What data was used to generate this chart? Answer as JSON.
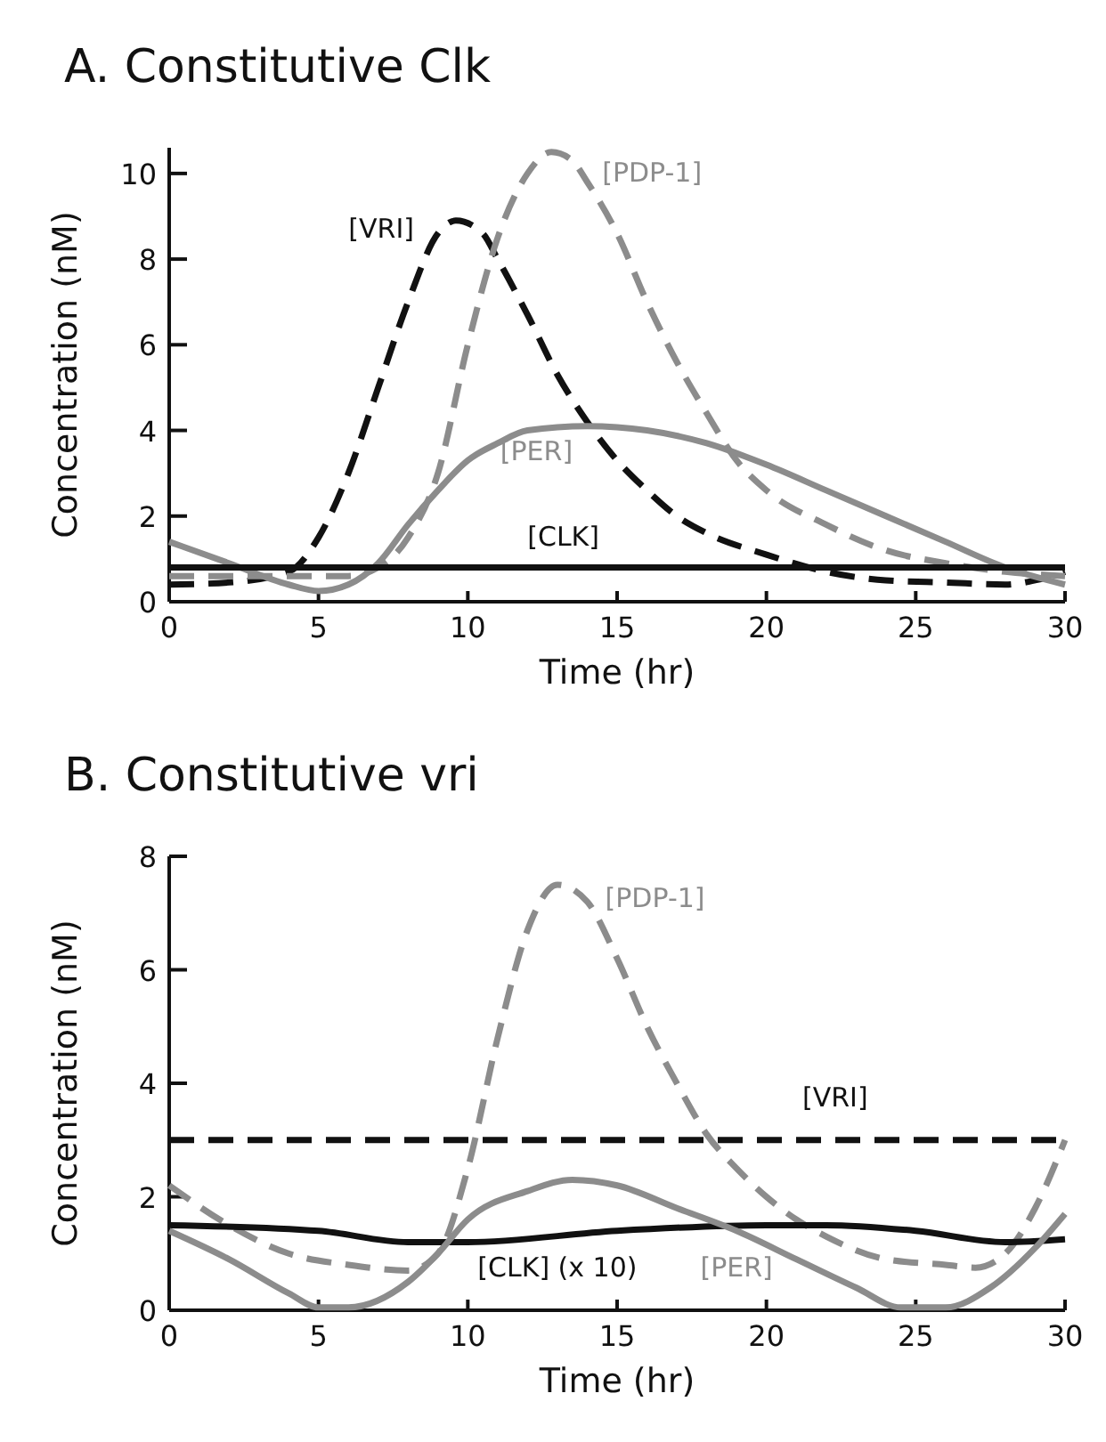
{
  "chart_data": [
    {
      "type": "line",
      "title": "A.  Constitutive Clk",
      "xlabel": "Time (hr)",
      "ylabel": "Concentration (nM)",
      "xlim": [
        0,
        30
      ],
      "xticks": [
        0,
        5,
        10,
        15,
        20,
        25,
        30
      ],
      "ylim": [
        0,
        10.6
      ],
      "yticks": [
        0,
        2,
        4,
        6,
        8,
        10
      ],
      "grid": false,
      "legend": false,
      "marker": "none",
      "series": [
        {
          "name": "[VRI]",
          "color": "#111111",
          "line_style": "dashed",
          "x": [
            0,
            2,
            4,
            5,
            6,
            7,
            8,
            9,
            9.6,
            10.5,
            11,
            12,
            13,
            14,
            15,
            16,
            17,
            18,
            20,
            22,
            24,
            26,
            28,
            29,
            30
          ],
          "values": [
            0.4,
            0.45,
            0.7,
            1.5,
            3,
            5,
            7,
            8.6,
            8.9,
            8.6,
            8,
            6.7,
            5.3,
            4.2,
            3.3,
            2.6,
            2,
            1.6,
            1.1,
            0.7,
            0.5,
            0.45,
            0.4,
            0.5,
            0.7
          ]
        },
        {
          "name": "[PDP-1]",
          "color": "#8c8c8c",
          "line_style": "dashed",
          "x": [
            0,
            4,
            6,
            7,
            8,
            9,
            10,
            11,
            12,
            12.8,
            13.5,
            14,
            15,
            16,
            17,
            18,
            19,
            20,
            22,
            24,
            26,
            28,
            30
          ],
          "values": [
            0.6,
            0.6,
            0.6,
            0.8,
            1.5,
            3,
            6,
            8.5,
            10,
            10.5,
            10.3,
            9.8,
            8.6,
            7,
            5.6,
            4.4,
            3.3,
            2.6,
            1.8,
            1.2,
            0.9,
            0.7,
            0.6
          ]
        },
        {
          "name": "[PER]",
          "color": "#8c8c8c",
          "line_style": "solid",
          "x": [
            0,
            2,
            4,
            5,
            6,
            7,
            8,
            9,
            10,
            11,
            12,
            14,
            16,
            18,
            20,
            22,
            24,
            26,
            28,
            30
          ],
          "values": [
            1.4,
            0.9,
            0.4,
            0.25,
            0.4,
            0.9,
            1.8,
            2.6,
            3.3,
            3.7,
            4,
            4.1,
            4,
            3.7,
            3.2,
            2.6,
            2,
            1.4,
            0.8,
            0.4
          ]
        },
        {
          "name": "[CLK]",
          "color": "#111111",
          "line_style": "solid",
          "x": [
            0,
            30
          ],
          "values": [
            0.8,
            0.8
          ]
        }
      ]
    },
    {
      "type": "line",
      "title": "B.  Constitutive vri",
      "xlabel": "Time (hr)",
      "ylabel": "Concentration (nM)",
      "xlim": [
        0,
        30
      ],
      "xticks": [
        0,
        5,
        10,
        15,
        20,
        25,
        30
      ],
      "ylim": [
        0,
        8
      ],
      "yticks": [
        0,
        2,
        4,
        6,
        8
      ],
      "grid": false,
      "legend": false,
      "marker": "none",
      "series": [
        {
          "name": "[PDP-1]",
          "color": "#8c8c8c",
          "line_style": "dashed",
          "x": [
            0,
            2,
            4,
            6,
            8,
            9,
            10,
            11,
            12,
            13,
            14,
            15,
            16,
            17,
            18,
            19,
            20,
            21,
            22,
            24,
            26,
            27,
            28,
            29,
            30
          ],
          "values": [
            2.2,
            1.5,
            1,
            0.8,
            0.7,
            1,
            2.5,
            4.8,
            6.7,
            7.5,
            7.2,
            6.2,
            5,
            4,
            3.1,
            2.5,
            2,
            1.6,
            1.3,
            0.9,
            0.8,
            0.75,
            1,
            1.8,
            3
          ]
        },
        {
          "name": "[VRI]",
          "color": "#111111",
          "line_style": "dashed",
          "x": [
            0,
            30
          ],
          "values": [
            3,
            3
          ]
        },
        {
          "name": "[CLK] (x 10)",
          "color": "#111111",
          "line_style": "solid",
          "x": [
            0,
            5,
            8,
            10,
            15,
            20,
            22,
            25,
            28,
            30
          ],
          "values": [
            1.5,
            1.4,
            1.2,
            1.2,
            1.4,
            1.5,
            1.5,
            1.4,
            1.2,
            1.25
          ]
        },
        {
          "name": "[PER]",
          "color": "#8c8c8c",
          "line_style": "solid",
          "x": [
            0,
            2,
            4,
            5,
            6,
            8,
            9,
            10,
            12,
            13.5,
            15,
            17,
            19,
            21,
            23,
            24.5,
            26,
            27.5,
            29,
            30
          ],
          "values": [
            1.4,
            0.9,
            0.3,
            0.05,
            0.05,
            0.5,
            1,
            1.6,
            2.1,
            2.3,
            2.2,
            1.8,
            1.4,
            0.9,
            0.4,
            0.05,
            0.05,
            0.4,
            1.1,
            1.7
          ]
        }
      ]
    }
  ]
}
